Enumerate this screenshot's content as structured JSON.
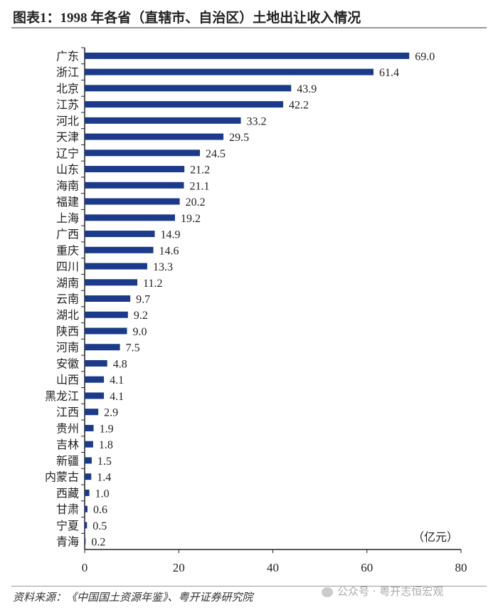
{
  "title": "图表1：1998 年各省（直辖市、自治区）土地出让收入情况",
  "source": "资料来源：《中国国土资源年鉴》、粤开证券研究院",
  "watermark": "公众号 · 粤开志恒宏观",
  "colors": {
    "bar": "#1b3a8a"
  },
  "chart_data": {
    "type": "bar",
    "orientation": "horizontal",
    "title": "图表1：1998 年各省（直辖市、自治区）土地出让收入情况",
    "unit_label": "（亿元）",
    "categories": [
      "广东",
      "浙江",
      "北京",
      "江苏",
      "河北",
      "天津",
      "辽宁",
      "山东",
      "海南",
      "福建",
      "上海",
      "广西",
      "重庆",
      "四川",
      "湖南",
      "云南",
      "湖北",
      "陕西",
      "河南",
      "安徽",
      "山西",
      "黑龙江",
      "江西",
      "贵州",
      "吉林",
      "新疆",
      "内蒙古",
      "西藏",
      "甘肃",
      "宁夏",
      "青海"
    ],
    "values": [
      69.0,
      61.4,
      43.9,
      42.2,
      33.2,
      29.5,
      24.5,
      21.2,
      21.1,
      20.2,
      19.2,
      14.9,
      14.6,
      13.3,
      11.2,
      9.7,
      9.2,
      9.0,
      7.5,
      4.8,
      4.1,
      4.1,
      2.9,
      1.9,
      1.8,
      1.5,
      1.4,
      1.0,
      0.6,
      0.5,
      0.2
    ],
    "data_labels": [
      "69.0",
      "61.4",
      "43.9",
      "42.2",
      "33.2",
      "29.5",
      "24.5",
      "21.2",
      "21.1",
      "20.2",
      "19.2",
      "14.9",
      "14.6",
      "13.3",
      "11.2",
      "9.7",
      "9.2",
      "9.0",
      "7.5",
      "4.8",
      "4.1",
      "4.1",
      "2.9",
      "1.9",
      "1.8",
      "1.5",
      "1.4",
      "1.0",
      "0.6",
      "0.5",
      "0.2"
    ],
    "xlim": [
      0,
      80
    ],
    "xticks": [
      "0",
      "20",
      "40",
      "60",
      "80"
    ],
    "grid": false,
    "legend": "none"
  }
}
